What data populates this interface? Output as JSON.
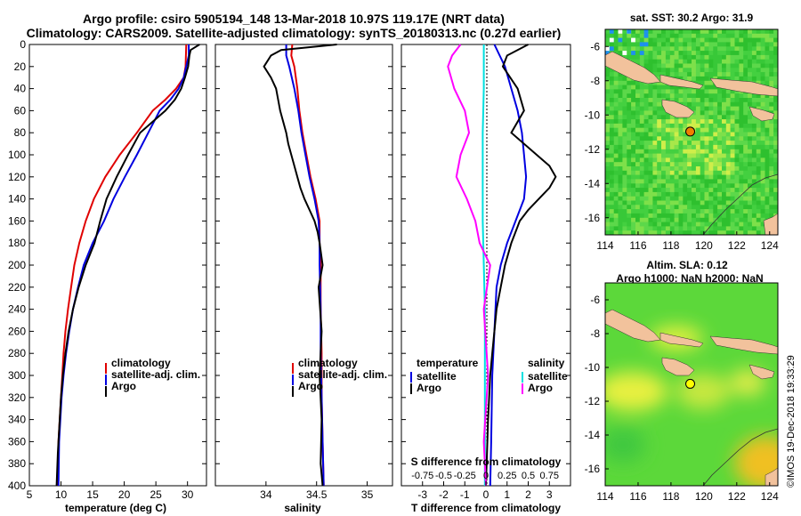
{
  "header": {
    "title_line1": "Argo profile: csiro 5905194_148 13-Mar-2018 10.97S 119.17E (NRT data)",
    "title_line2": "Climatology: CARS2009. Satellite-adjusted climatology: synTS_20180313.nc (0.27d earlier)"
  },
  "colors": {
    "climatology": "#e00000",
    "satellite": "#0000e0",
    "argo": "#000000",
    "sat_salinity": "#00e0e0",
    "clim_salinity": "#ff00ff",
    "land": "#f2c29c",
    "zero_line": "#000000"
  },
  "chart_data": [
    {
      "type": "line",
      "id": "temperature",
      "xlabel": "temperature (deg C)",
      "ylabel": "depth",
      "xlim": [
        5,
        33
      ],
      "ylim": [
        400,
        0
      ],
      "xticks": [
        5,
        10,
        15,
        20,
        25,
        30
      ],
      "yticks": [
        0,
        20,
        40,
        60,
        80,
        100,
        120,
        140,
        160,
        180,
        200,
        220,
        240,
        260,
        280,
        300,
        320,
        340,
        360,
        380,
        400
      ],
      "legend": [
        "climatology",
        "satellite-adj. clim.",
        "Argo"
      ],
      "series": [
        {
          "name": "climatology",
          "x": [
            29.8,
            29.7,
            29.4,
            28.2,
            26.5,
            24.5,
            22.0,
            19.3,
            17.0,
            15.2,
            13.9,
            12.9,
            12.1,
            11.6,
            11.1,
            10.7,
            10.4,
            10.2,
            10.0,
            9.8,
            9.6,
            9.5
          ],
          "y": [
            0,
            20,
            30,
            40,
            50,
            60,
            80,
            100,
            120,
            140,
            160,
            180,
            200,
            220,
            240,
            260,
            280,
            300,
            320,
            340,
            360,
            400
          ]
        },
        {
          "name": "satellite-adj. clim.",
          "x": [
            30.2,
            30.2,
            29.4,
            28.6,
            27.3,
            25.6,
            23.8,
            22.0,
            20.1,
            18.3,
            16.8,
            15.0,
            13.6,
            12.7,
            11.9,
            11.3,
            10.8,
            10.4,
            10.1,
            9.9,
            9.7,
            9.6
          ],
          "y": [
            0,
            10,
            30,
            40,
            50,
            60,
            80,
            100,
            120,
            140,
            160,
            180,
            200,
            220,
            240,
            260,
            280,
            300,
            320,
            340,
            360,
            400
          ]
        },
        {
          "name": "Argo",
          "x": [
            31.9,
            30.5,
            30.3,
            30.1,
            29.6,
            29.0,
            28.0,
            26.5,
            24.5,
            22.5,
            20.6,
            18.8,
            17.2,
            16.2,
            15.3,
            13.9,
            12.8,
            11.9,
            11.2,
            10.7,
            10.3,
            10.0,
            9.8,
            9.5,
            9.3
          ],
          "y": [
            0,
            5,
            10,
            20,
            30,
            40,
            50,
            60,
            70,
            80,
            100,
            120,
            140,
            160,
            180,
            200,
            220,
            240,
            260,
            280,
            300,
            320,
            340,
            370,
            400
          ]
        }
      ]
    },
    {
      "type": "line",
      "id": "salinity",
      "xlabel": "salinity",
      "xlim": [
        33.5,
        35.25
      ],
      "ylim": [
        400,
        0
      ],
      "xticks": [
        34,
        34.5,
        35
      ],
      "xtick_labels": [
        "34",
        "34.5",
        "35"
      ],
      "legend": [
        "climatology",
        "satellite-adj. clim.",
        "Argo"
      ],
      "series": [
        {
          "name": "climatology",
          "x": [
            34.26,
            34.25,
            34.28,
            34.31,
            34.33,
            34.36,
            34.4,
            34.44,
            34.49,
            34.53,
            34.53,
            34.54,
            34.54,
            34.55,
            34.55,
            34.56,
            34.57
          ],
          "y": [
            0,
            10,
            20,
            40,
            60,
            80,
            100,
            120,
            140,
            160,
            180,
            200,
            240,
            280,
            320,
            360,
            400
          ]
        },
        {
          "name": "satellite-adj. clim.",
          "x": [
            34.2,
            34.2,
            34.23,
            34.28,
            34.32,
            34.35,
            34.39,
            34.43,
            34.48,
            34.52,
            34.53,
            34.53,
            34.54,
            34.54,
            34.55,
            34.56,
            34.57
          ],
          "y": [
            0,
            10,
            20,
            40,
            60,
            80,
            100,
            120,
            140,
            160,
            180,
            200,
            240,
            280,
            320,
            360,
            400
          ]
        },
        {
          "name": "Argo",
          "x": [
            34.7,
            34.15,
            34.05,
            33.98,
            34.05,
            34.1,
            34.12,
            34.14,
            34.17,
            34.2,
            34.22,
            34.25,
            34.28,
            34.31,
            34.34,
            34.38,
            34.43,
            34.48,
            34.51,
            34.53,
            34.56,
            34.52,
            34.55,
            34.53,
            34.55,
            34.54,
            34.56
          ],
          "y": [
            0,
            5,
            10,
            20,
            30,
            40,
            50,
            60,
            70,
            80,
            90,
            100,
            110,
            120,
            130,
            140,
            150,
            160,
            170,
            180,
            200,
            220,
            260,
            300,
            340,
            380,
            400
          ]
        }
      ]
    },
    {
      "type": "line",
      "id": "difference",
      "xlabel": "T difference from climatology",
      "top_axis_label": "S difference from climatology",
      "xlim": [
        -4,
        4
      ],
      "ylim": [
        400,
        0
      ],
      "xticks": [
        -3,
        -2,
        -1,
        0,
        1,
        2,
        3
      ],
      "top_xticks": [
        -0.75,
        -0.5,
        -0.25,
        0,
        0.25,
        0.5,
        0.75
      ],
      "top_xtick_labels": [
        "-0.75",
        "-0.5",
        "-0.25",
        "0",
        "0.25",
        "0.5",
        "0.75"
      ],
      "legend_temperature": [
        "temperature",
        "satellite",
        "Argo"
      ],
      "legend_salinity": [
        "salinity",
        "satellite",
        "Argo"
      ],
      "series": [
        {
          "name": "T satellite",
          "x": [
            0.4,
            0.9,
            1.2,
            1.5,
            1.7,
            1.8,
            1.9,
            1.8,
            1.4,
            1.0,
            0.7,
            0.5,
            0.4,
            0.3,
            0.25,
            0.2
          ],
          "y": [
            0,
            20,
            40,
            60,
            80,
            100,
            120,
            140,
            160,
            180,
            200,
            220,
            260,
            300,
            360,
            400
          ]
        },
        {
          "name": "T Argo",
          "x": [
            2.0,
            1.0,
            0.8,
            1.5,
            1.8,
            1.2,
            2.4,
            3.0,
            3.3,
            3.0,
            2.5,
            2.0,
            1.6,
            1.2,
            0.9,
            0.7,
            0.5,
            0.4,
            0.3,
            0.2,
            0.1,
            0.0
          ],
          "y": [
            0,
            10,
            20,
            40,
            60,
            80,
            100,
            110,
            120,
            130,
            140,
            150,
            160,
            180,
            200,
            220,
            240,
            260,
            280,
            300,
            340,
            400
          ]
        },
        {
          "name": "S satellite",
          "x": [
            -0.1,
            -0.1,
            -0.15,
            -0.15,
            -0.15,
            -0.1,
            -0.05,
            -0.05,
            -0.05,
            -0.05,
            -0.05
          ],
          "y": [
            0,
            40,
            80,
            120,
            160,
            200,
            240,
            280,
            320,
            360,
            400
          ]
        },
        {
          "name": "S Argo",
          "x": [
            -1.2,
            -1.6,
            -1.8,
            -1.5,
            -1.0,
            -0.8,
            -1.2,
            -1.4,
            -0.9,
            -0.5,
            -0.3,
            0.2,
            -0.1,
            0.1,
            -0.1,
            0.0
          ],
          "y": [
            0,
            10,
            20,
            40,
            60,
            80,
            100,
            120,
            140,
            160,
            180,
            200,
            240,
            300,
            360,
            400
          ]
        }
      ]
    },
    {
      "type": "heatmap",
      "id": "sst_map",
      "title": "sat. SST: 30.2 Argo: 31.9",
      "xlim": [
        114,
        124.5
      ],
      "ylim": [
        -17,
        -5
      ],
      "xticks": [
        114,
        116,
        118,
        120,
        122,
        124
      ],
      "yticks": [
        -6,
        -8,
        -10,
        -12,
        -14,
        -16
      ],
      "marker": {
        "lon": 119.17,
        "lat": -10.97,
        "color": "#f08000"
      }
    },
    {
      "type": "heatmap",
      "id": "sla_map",
      "title": "Altim. SLA: 0.12",
      "subtitle": "Argo h1000: NaN h2000: NaN",
      "xlim": [
        114,
        124.5
      ],
      "ylim": [
        -17,
        -5
      ],
      "xticks": [
        114,
        116,
        118,
        120,
        122,
        124
      ],
      "yticks": [
        -6,
        -8,
        -10,
        -12,
        -14,
        -16
      ],
      "marker": {
        "lon": 119.17,
        "lat": -10.97,
        "color": "#ffff00"
      }
    }
  ],
  "credit": "©IMOS 19-Dec-2018 19:33:29"
}
